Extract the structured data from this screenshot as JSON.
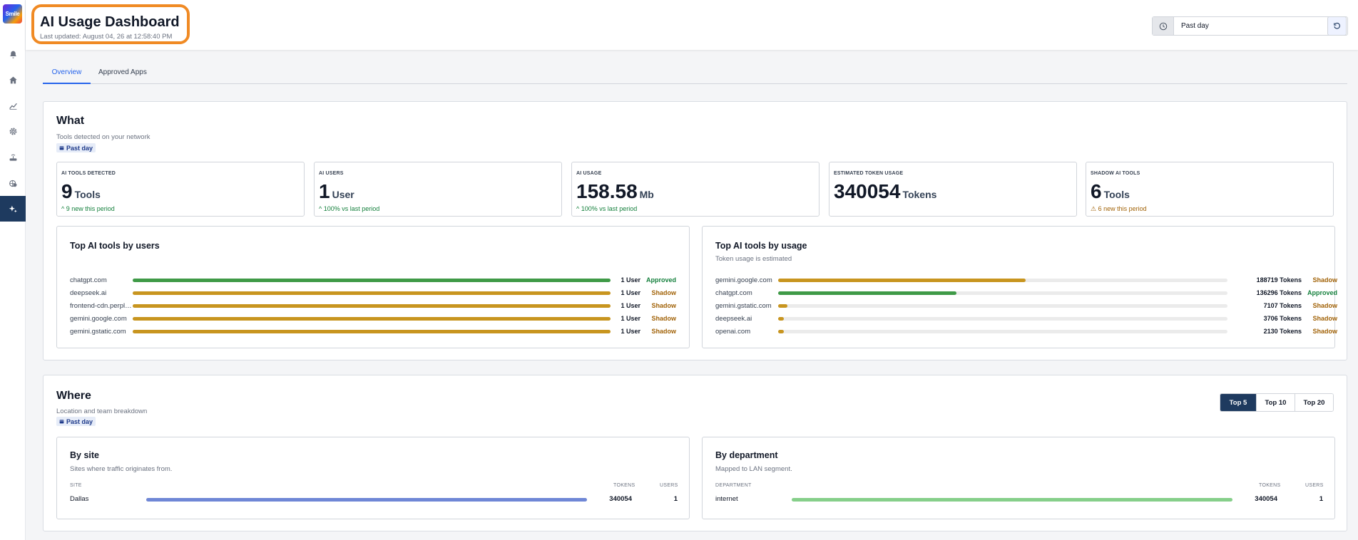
{
  "brand": {
    "logo_text": "Smile"
  },
  "sidebar": {
    "items": [
      {
        "name": "sidebar-item-notifications",
        "icon": "bell-icon"
      },
      {
        "name": "sidebar-item-home",
        "icon": "home-icon"
      },
      {
        "name": "sidebar-item-analytics",
        "icon": "chart-line-icon"
      },
      {
        "name": "sidebar-item-settings",
        "icon": "gear-icon"
      },
      {
        "name": "sidebar-item-router",
        "icon": "router-icon"
      },
      {
        "name": "sidebar-item-network-security",
        "icon": "shield-network-icon"
      },
      {
        "name": "sidebar-item-ai",
        "icon": "sparkles-icon",
        "active": true
      }
    ]
  },
  "header": {
    "title": "AI Usage Dashboard",
    "last_updated": "Last updated: August 04, 26 at 12:58:40 PM",
    "range_value": "Past day",
    "accent_color": "#f08a24"
  },
  "tabs": [
    {
      "label": "Overview",
      "active": true
    },
    {
      "label": "Approved Apps",
      "active": false
    }
  ],
  "what": {
    "title": "What",
    "subtitle": "Tools detected on your network",
    "period": "Past day",
    "stats": [
      {
        "label": "AI TOOLS DETECTED",
        "value": "9",
        "unit": "Tools",
        "note": "^ 9 new this period",
        "tone": "good"
      },
      {
        "label": "AI USERS",
        "value": "1",
        "unit": "User",
        "note": "^ 100% vs last period",
        "tone": "good"
      },
      {
        "label": "AI USAGE",
        "value": "158.58",
        "unit": "Mb",
        "note": "^ 100% vs last period",
        "tone": "good"
      },
      {
        "label": "ESTIMATED TOKEN USAGE",
        "value": "340054",
        "unit": "Tokens",
        "note": "",
        "tone": "good"
      },
      {
        "label": "SHADOW AI TOOLS",
        "value": "6",
        "unit": "Tools",
        "note": "⚠ 6 new this period",
        "tone": "warn"
      }
    ],
    "by_users": {
      "title": "Top AI tools by users",
      "rows": [
        {
          "name": "chatgpt.com",
          "share": 1.0,
          "count": "1 User",
          "status": "Approved"
        },
        {
          "name": "deepseek.ai",
          "share": 1.0,
          "count": "1 User",
          "status": "Shadow"
        },
        {
          "name": "frontend-cdn.perplexity.ai",
          "share": 1.0,
          "count": "1 User",
          "status": "Shadow"
        },
        {
          "name": "gemini.google.com",
          "share": 1.0,
          "count": "1 User",
          "status": "Shadow"
        },
        {
          "name": "gemini.gstatic.com",
          "share": 1.0,
          "count": "1 User",
          "status": "Shadow"
        }
      ]
    },
    "by_usage": {
      "title": "Top AI tools by usage",
      "subtitle": "Token usage is estimated",
      "rows": [
        {
          "name": "gemini.google.com",
          "tokens": 188719,
          "count": "188719 Tokens",
          "status": "Shadow"
        },
        {
          "name": "chatgpt.com",
          "tokens": 136296,
          "count": "136296 Tokens",
          "status": "Approved"
        },
        {
          "name": "gemini.gstatic.com",
          "tokens": 7107,
          "count": "7107 Tokens",
          "status": "Shadow"
        },
        {
          "name": "deepseek.ai",
          "tokens": 3706,
          "count": "3706 Tokens",
          "status": "Shadow"
        },
        {
          "name": "openai.com",
          "tokens": 2130,
          "count": "2130 Tokens",
          "status": "Shadow"
        }
      ]
    }
  },
  "where": {
    "title": "Where",
    "subtitle": "Location and team breakdown",
    "period": "Past day",
    "topn": [
      {
        "label": "Top 5",
        "active": true
      },
      {
        "label": "Top 10",
        "active": false
      },
      {
        "label": "Top 20",
        "active": false
      }
    ],
    "by_site": {
      "title": "By site",
      "subtitle": "Sites where traffic originates from.",
      "col_name": "SITE",
      "col_tokens": "TOKENS",
      "col_users": "USERS",
      "rows": [
        {
          "name": "Dallas",
          "share": 1.0,
          "tokens": "340054",
          "users": "1"
        }
      ],
      "bar_color": "#6f87d6"
    },
    "by_department": {
      "title": "By department",
      "subtitle": "Mapped to LAN segment.",
      "col_name": "DEPARTMENT",
      "col_tokens": "TOKENS",
      "col_users": "USERS",
      "rows": [
        {
          "name": "internet",
          "share": 1.0,
          "tokens": "340054",
          "users": "1"
        }
      ],
      "bar_color": "#86cf8a"
    }
  },
  "colors": {
    "approved": "#3f9a47",
    "shadow": "#c8951f",
    "nav_active": "#1e3a5f",
    "link": "#2563eb"
  }
}
